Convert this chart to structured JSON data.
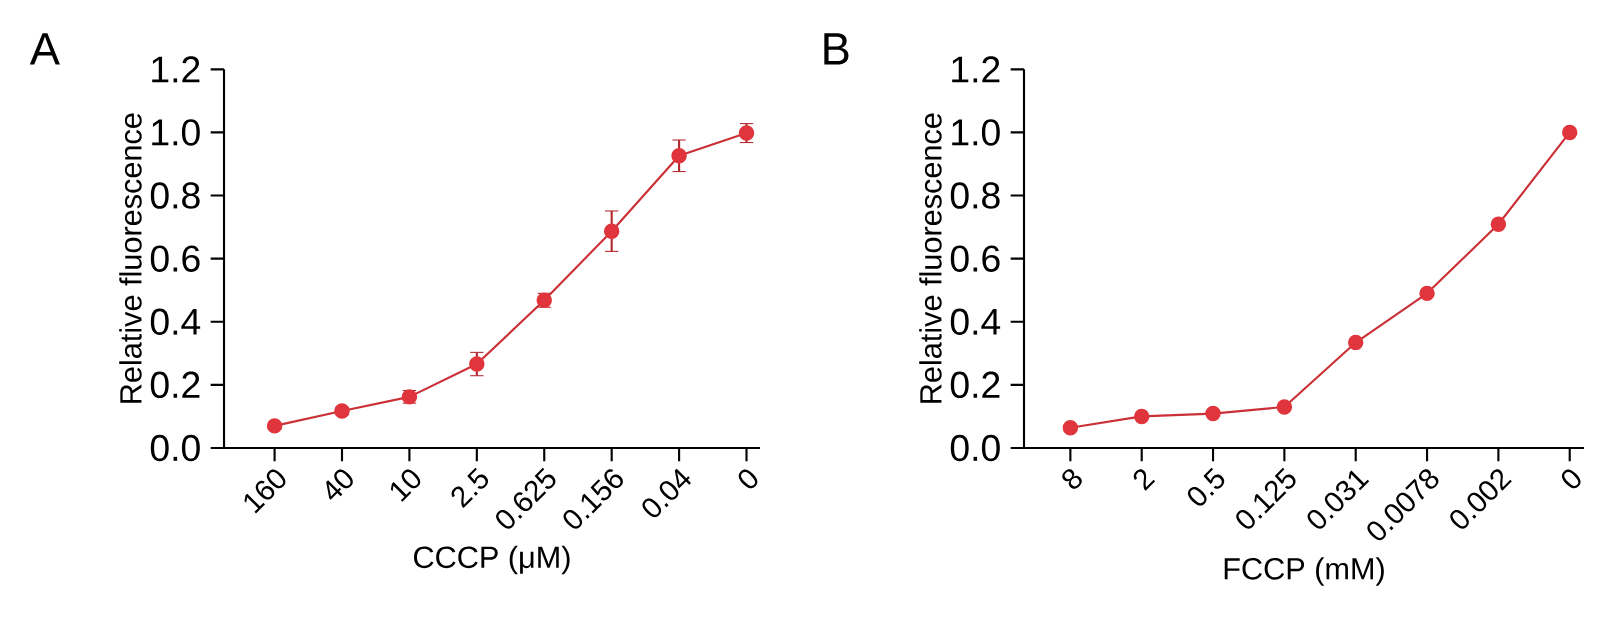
{
  "chart_data": [
    {
      "type": "line",
      "xlabel": "CCCP (μM)",
      "ylabel": "Relative fluorescence",
      "categories": [
        "160",
        "40",
        "10",
        "2.5",
        "0.625",
        "0.156",
        "0.04",
        "0"
      ],
      "values": [
        0.07,
        0.117,
        0.162,
        0.266,
        0.468,
        0.687,
        0.926,
        0.998
      ],
      "errors": [
        0.01,
        0.012,
        0.02,
        0.037,
        0.022,
        0.064,
        0.05,
        0.03
      ],
      "color": "#e0353c",
      "marker": "circle",
      "ylim": [
        0,
        1.2
      ],
      "yticks": [
        {
          "value": 0,
          "label": "0.0"
        },
        {
          "value": 0.2,
          "label": "0.2"
        },
        {
          "value": 0.4,
          "label": "0.4"
        },
        {
          "value": 0.6,
          "label": "0.6"
        },
        {
          "value": 0.8,
          "label": "0.8"
        },
        {
          "value": 1.0,
          "label": "1.0"
        },
        {
          "value": 1.2,
          "label": "1.2"
        }
      ],
      "annotations": [
        "A"
      ]
    },
    {
      "type": "line",
      "xlabel": "FCCP (mM)",
      "ylabel": "Relative fluorescence",
      "categories": [
        "8",
        "2",
        "0.5",
        "0.125",
        "0.031",
        "0.0078",
        "0.002",
        "0"
      ],
      "values": [
        0.064,
        0.1,
        0.109,
        0.13,
        0.334,
        0.49,
        0.709,
        1.0
      ],
      "color": "#e0353c",
      "marker": "circle",
      "ylim": [
        0,
        1.2
      ],
      "yticks": [
        {
          "value": 0,
          "label": "0.0"
        },
        {
          "value": 0.2,
          "label": "0.2"
        },
        {
          "value": 0.4,
          "label": "0.4"
        },
        {
          "value": 0.6,
          "label": "0.6"
        },
        {
          "value": 0.8,
          "label": "0.8"
        },
        {
          "value": 1.0,
          "label": "1.0"
        },
        {
          "value": 1.2,
          "label": "1.2"
        }
      ],
      "annotations": [
        "B"
      ]
    }
  ]
}
